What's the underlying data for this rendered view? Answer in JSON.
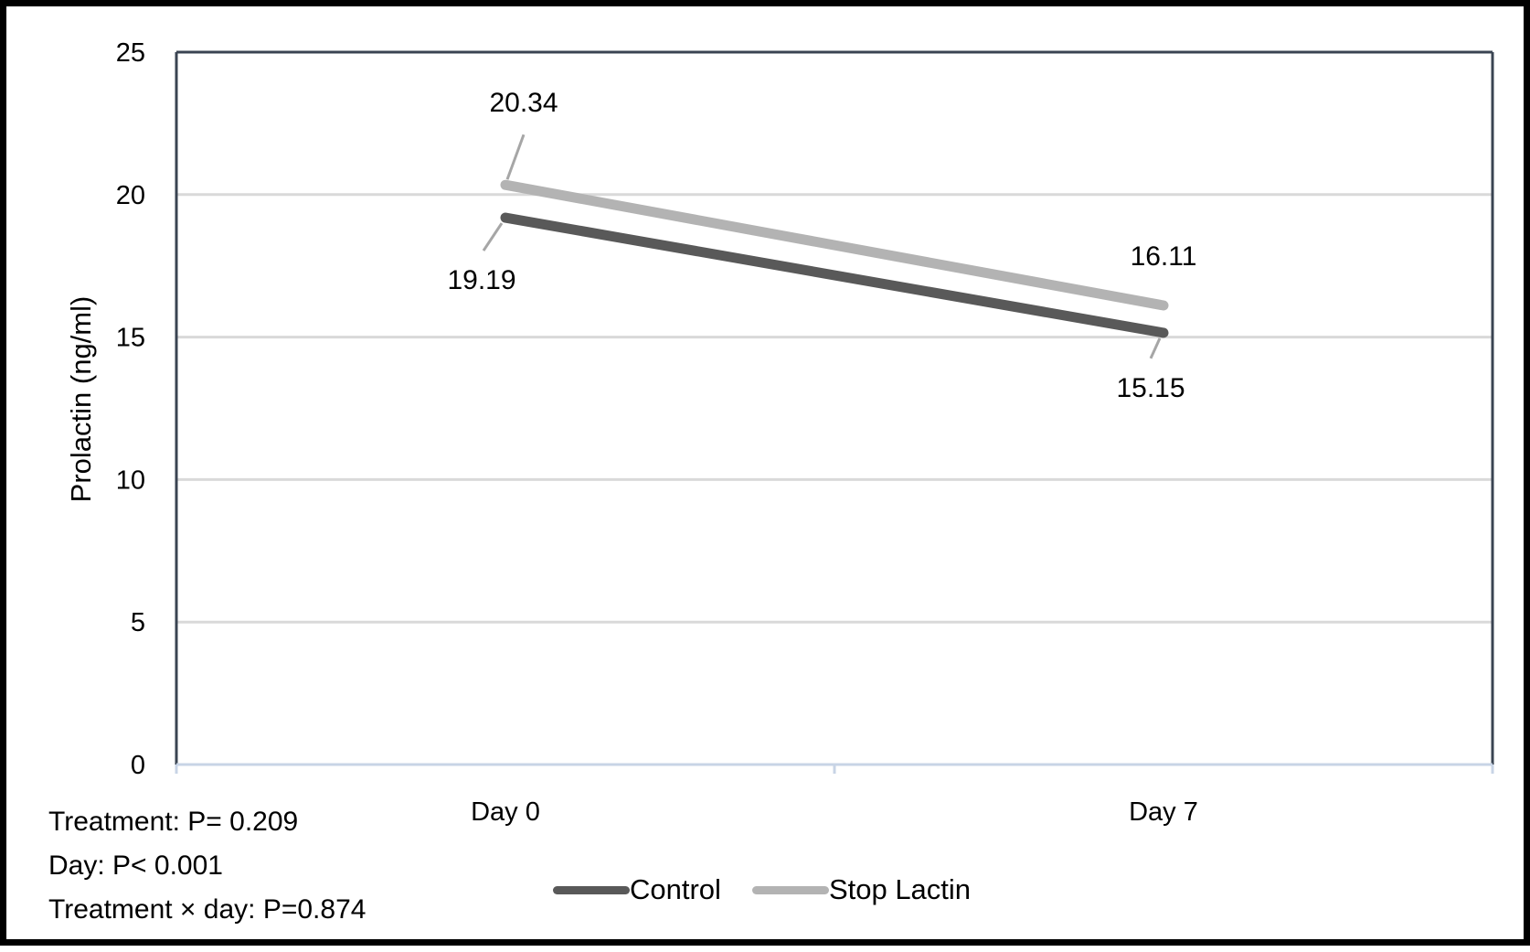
{
  "chart_data": {
    "type": "line",
    "categories": [
      "Day 0",
      "Day 7"
    ],
    "ylabel": "Prolactin (ng/ml)",
    "ylim": [
      0,
      25
    ],
    "yticks": [
      0,
      5,
      10,
      15,
      20,
      25
    ],
    "grid": true,
    "legend_position": "bottom",
    "series": [
      {
        "name": "Control",
        "values": [
          19.19,
          15.15
        ],
        "labels": [
          "19.19",
          "15.15"
        ],
        "color": "#595959"
      },
      {
        "name": "Stop Lactin",
        "values": [
          20.34,
          16.11
        ],
        "labels": [
          "20.34",
          "16.11"
        ],
        "color": "#b3b3b3"
      }
    ]
  },
  "stats": {
    "treatment": "Treatment: P= 0.209",
    "day": "Day: P< 0.001",
    "interaction": "Treatment × day: P=0.874"
  }
}
